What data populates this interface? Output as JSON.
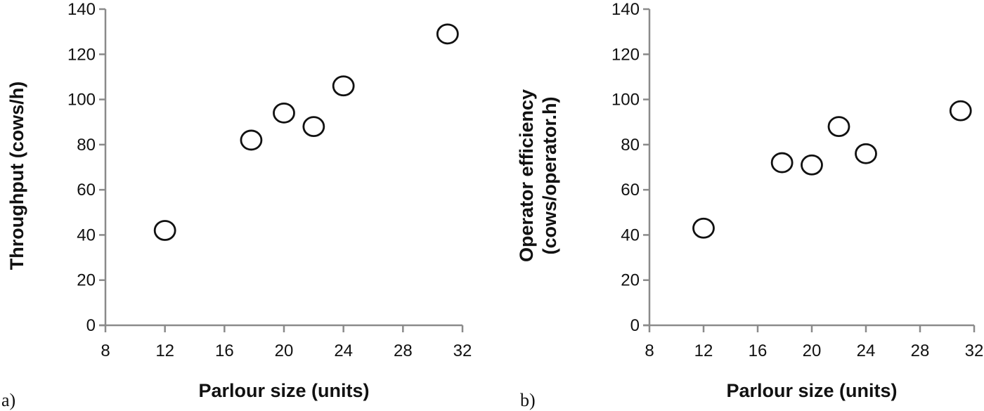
{
  "chart_data": [
    {
      "type": "scatter",
      "panel_label": "a)",
      "title": "",
      "xlabel": "Parlour size (units)",
      "ylabel": "Throughput (cows/h)",
      "ylabel_lines": [
        "Throughput (cows/h)"
      ],
      "xlim": [
        8,
        32
      ],
      "ylim": [
        0,
        140
      ],
      "xticks": [
        8,
        12,
        16,
        20,
        24,
        28,
        32
      ],
      "yticks": [
        0,
        20,
        40,
        60,
        80,
        100,
        120,
        140
      ],
      "grid": false,
      "legend": null,
      "marker": "open-circle",
      "x": [
        12,
        17.8,
        20,
        22,
        24,
        31
      ],
      "y": [
        42,
        82,
        94,
        88,
        106,
        129
      ]
    },
    {
      "type": "scatter",
      "panel_label": "b)",
      "title": "",
      "xlabel": "Parlour size (units)",
      "ylabel": "Operator efficiency (cows/operator.h)",
      "ylabel_lines": [
        "Operator efficiency",
        "(cows/operator.h)"
      ],
      "xlim": [
        8,
        32
      ],
      "ylim": [
        0,
        140
      ],
      "xticks": [
        8,
        12,
        16,
        20,
        24,
        28,
        32
      ],
      "yticks": [
        0,
        20,
        40,
        60,
        80,
        100,
        120,
        140
      ],
      "grid": false,
      "legend": null,
      "marker": "open-circle",
      "x": [
        12,
        17.8,
        20,
        22,
        24,
        31
      ],
      "y": [
        43,
        72,
        71,
        88,
        76,
        95
      ]
    }
  ],
  "colors": {
    "axis": "#8a8a8a",
    "marker_stroke": "#111111",
    "marker_fill": "#ffffff",
    "text": "#111111"
  }
}
